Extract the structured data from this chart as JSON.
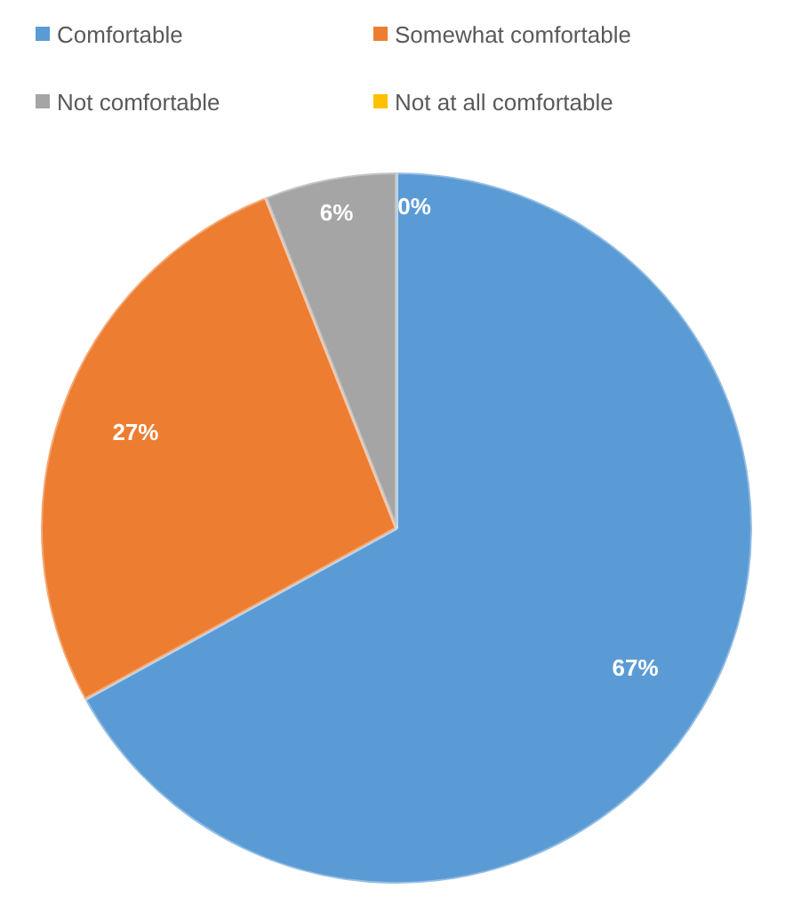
{
  "chart_data": {
    "type": "pie",
    "categories": [
      "Comfortable",
      "Somewhat comfortable",
      "Not comfortable",
      "Not at all comfortable"
    ],
    "values": [
      67,
      27,
      6,
      0
    ],
    "colors": [
      "#5b9bd5",
      "#ed7d31",
      "#a5a5a5",
      "#ffc000"
    ],
    "value_labels": [
      "67%",
      "27%",
      "6%",
      "0%"
    ],
    "legend": "top"
  }
}
